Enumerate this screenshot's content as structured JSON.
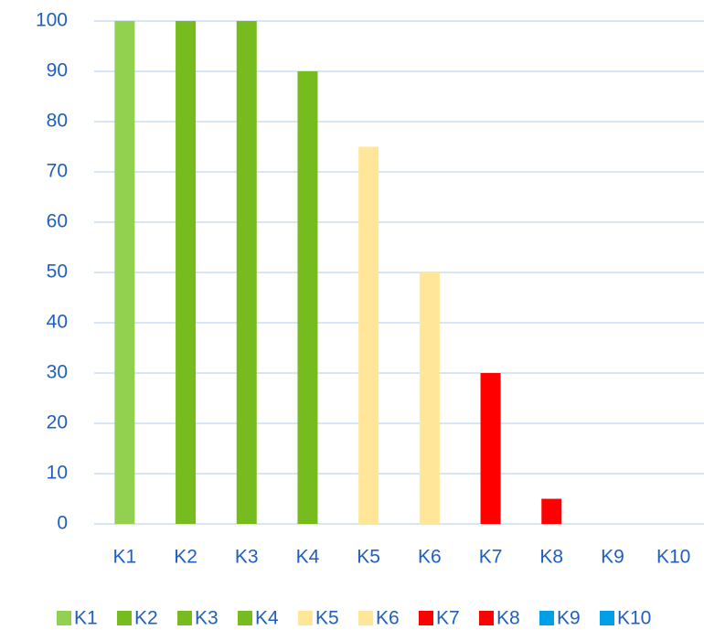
{
  "chart_data": {
    "type": "bar",
    "categories": [
      "K1",
      "K2",
      "K3",
      "K4",
      "K5",
      "K6",
      "K7",
      "K8",
      "K9",
      "K10"
    ],
    "values": [
      100,
      100,
      100,
      90,
      75,
      50,
      30,
      5,
      0,
      0
    ],
    "colors": [
      "#92d050",
      "#77bc1f",
      "#77bc1f",
      "#77bc1f",
      "#ffe699",
      "#ffe699",
      "#ff0000",
      "#ff0000",
      "#00a0e6",
      "#00a0e6"
    ],
    "ylim": [
      0,
      100
    ],
    "yticks": [
      0,
      10,
      20,
      30,
      40,
      50,
      60,
      70,
      80,
      90,
      100
    ],
    "grid": true,
    "legend": "bottom"
  }
}
